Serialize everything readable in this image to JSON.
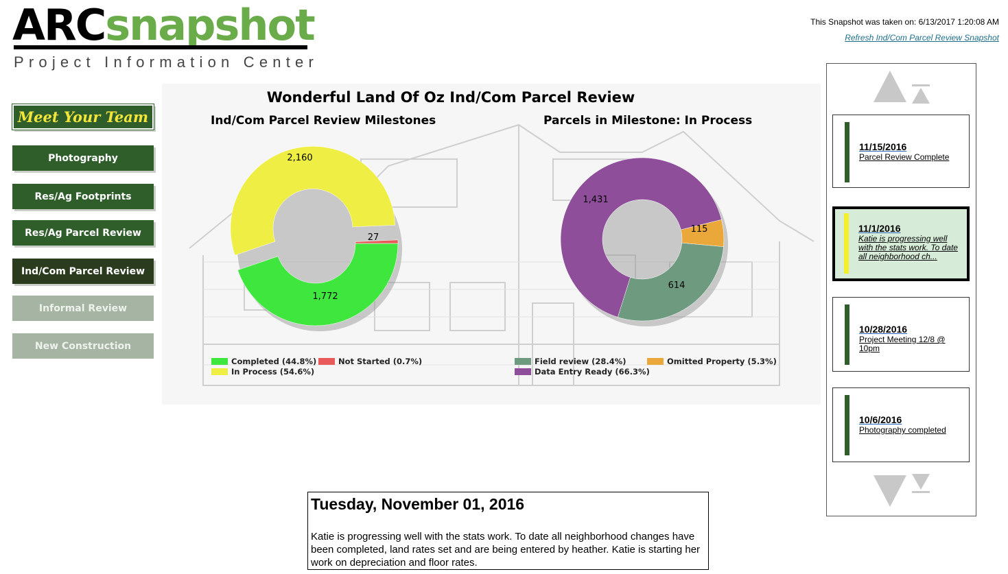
{
  "logo": {
    "part1": "ARC",
    "part2": "snapshot",
    "subtitle": "Project Information Center"
  },
  "header": {
    "snapshot_time": "This Snapshot was taken on: 6/13/2017 1:20:08 AM",
    "refresh_link": "Refresh Ind/Com Parcel Review Snapshot"
  },
  "nav": {
    "items": [
      {
        "label": "Meet Your Team",
        "state": "normal"
      },
      {
        "label": "Photography",
        "state": "normal"
      },
      {
        "label": "Res/Ag Footprints",
        "state": "normal"
      },
      {
        "label": "Res/Ag Parcel Review",
        "state": "normal"
      },
      {
        "label": "Ind/Com Parcel Review",
        "state": "active"
      },
      {
        "label": "Informal Review",
        "state": "disabled"
      },
      {
        "label": "New Construction",
        "state": "disabled"
      }
    ]
  },
  "dashboard": {
    "title": "Wonderful Land Of Oz Ind/Com Parcel Review"
  },
  "chart_data": [
    {
      "type": "pie",
      "title": "Ind/Com Parcel Review Milestones",
      "slices": [
        {
          "label": "Completed",
          "value": 1772,
          "percent": "44.8%",
          "color": "#3ee63e",
          "data_label": "1,772"
        },
        {
          "label": "Not Started",
          "value": 27,
          "percent": "0.7%",
          "color": "#e85a5a",
          "data_label": "27"
        },
        {
          "label": "In Process",
          "value": 2160,
          "percent": "54.6%",
          "color": "#eeee44",
          "data_label": "2,160",
          "exploded": true
        }
      ],
      "legend": [
        "Completed (44.8%)",
        "Not Started (0.7%)",
        "In Process (54.6%)"
      ]
    },
    {
      "type": "pie",
      "title": "Parcels in Milestone: In Process",
      "slices": [
        {
          "label": "Field review",
          "value": 614,
          "percent": "28.4%",
          "color": "#6e9b80",
          "data_label": "614"
        },
        {
          "label": "Omitted Property",
          "value": 115,
          "percent": "5.3%",
          "color": "#eba83a",
          "data_label": "115"
        },
        {
          "label": "Data Entry Ready",
          "value": 1431,
          "percent": "66.3%",
          "color": "#8e4e9a",
          "data_label": "1,431"
        }
      ],
      "legend": [
        "Field review (28.4%)",
        "Omitted Property (5.3%)",
        "Data Entry Ready (66.3%)"
      ]
    }
  ],
  "timeline": {
    "events": [
      {
        "date": "11/15/2016",
        "desc": "Parcel Review Complete",
        "selected": false
      },
      {
        "date": "11/1/2016",
        "desc": "Katie is progressing well with the stats work.  To date all neighborhood ch...",
        "selected": true
      },
      {
        "date": "10/28/2016",
        "desc": "Project Meeting 12/8 @ 10pm",
        "selected": false
      },
      {
        "date": "10/6/2016",
        "desc": "Photography completed",
        "selected": false
      }
    ]
  },
  "detail": {
    "date": "Tuesday, November 01, 2016",
    "text": "Katie is progressing well with the stats work. To date all neighborhood changes have been completed, land rates set and are being entered by heather. Katie is starting her work on depreciation and floor rates."
  }
}
